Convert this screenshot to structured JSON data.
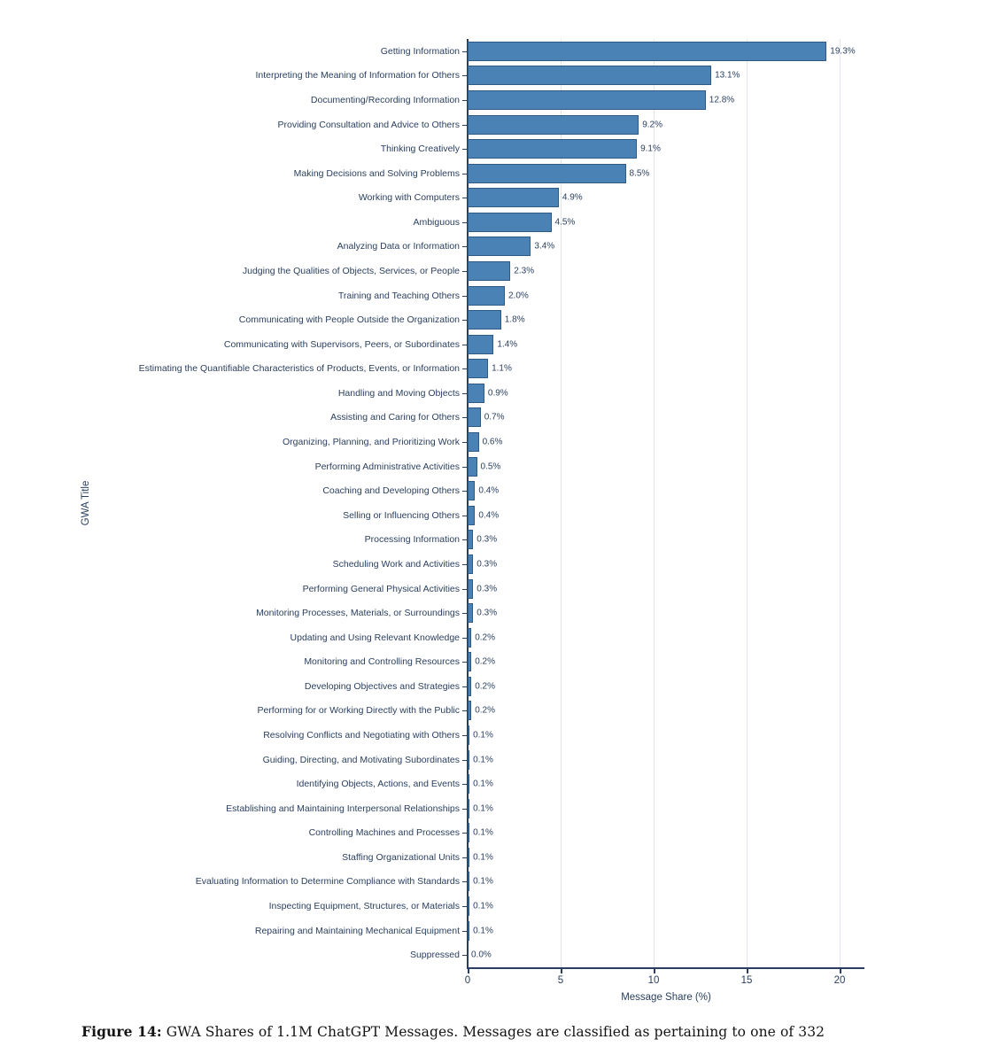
{
  "figure": {
    "caption_label": "Figure 14:",
    "caption_text": " GWA Shares of 1.1M ChatGPT Messages. Messages are classified as pertaining to one of 332"
  },
  "chart_data": {
    "type": "bar",
    "orientation": "horizontal",
    "title": "",
    "xlabel": "Message Share (%)",
    "ylabel": "GWA Title",
    "xlim": [
      0,
      21.3
    ],
    "xticks": [
      0,
      5,
      10,
      15,
      20
    ],
    "grid": true,
    "legend": "none",
    "bar_color": "#4a82b6",
    "bar_border_color": "#2f5a85",
    "text_color": "#2a3f5f",
    "gridline_color": "#e3e6ec",
    "categories": [
      "Getting Information",
      "Interpreting the Meaning of Information for Others",
      "Documenting/Recording Information",
      "Providing Consultation and Advice to Others",
      "Thinking Creatively",
      "Making Decisions and Solving Problems",
      "Working with Computers",
      "Ambiguous",
      "Analyzing Data or Information",
      "Judging the Qualities of Objects, Services, or People",
      "Training and Teaching Others",
      "Communicating with People Outside the Organization",
      "Communicating with Supervisors, Peers, or Subordinates",
      "Estimating the Quantifiable Characteristics of Products, Events, or Information",
      "Handling and Moving Objects",
      "Assisting and Caring for Others",
      "Organizing, Planning, and Prioritizing Work",
      "Performing Administrative Activities",
      "Coaching and Developing Others",
      "Selling or Influencing Others",
      "Processing Information",
      "Scheduling Work and Activities",
      "Performing General Physical Activities",
      "Monitoring Processes, Materials, or Surroundings",
      "Updating and Using Relevant Knowledge",
      "Monitoring and Controlling Resources",
      "Developing Objectives and Strategies",
      "Performing for or Working Directly with the Public",
      "Resolving Conflicts and Negotiating with Others",
      "Guiding, Directing, and Motivating Subordinates",
      "Identifying Objects, Actions, and Events",
      "Establishing and Maintaining Interpersonal Relationships",
      "Controlling Machines and Processes",
      "Staffing Organizational Units",
      "Evaluating Information to Determine Compliance with Standards",
      "Inspecting Equipment, Structures, or Materials",
      "Repairing and Maintaining Mechanical Equipment",
      "Suppressed"
    ],
    "values": [
      19.3,
      13.1,
      12.8,
      9.2,
      9.1,
      8.5,
      4.9,
      4.5,
      3.4,
      2.3,
      2.0,
      1.8,
      1.4,
      1.1,
      0.9,
      0.7,
      0.6,
      0.5,
      0.4,
      0.4,
      0.3,
      0.3,
      0.3,
      0.3,
      0.2,
      0.2,
      0.2,
      0.2,
      0.1,
      0.1,
      0.1,
      0.1,
      0.1,
      0.1,
      0.1,
      0.1,
      0.1,
      0.0
    ],
    "labels": [
      "19.3%",
      "13.1%",
      "12.8%",
      "9.2%",
      "9.1%",
      "8.5%",
      "4.9%",
      "4.5%",
      "3.4%",
      "2.3%",
      "2.0%",
      "1.8%",
      "1.4%",
      "1.1%",
      "0.9%",
      "0.7%",
      "0.6%",
      "0.5%",
      "0.4%",
      "0.4%",
      "0.3%",
      "0.3%",
      "0.3%",
      "0.3%",
      "0.2%",
      "0.2%",
      "0.2%",
      "0.2%",
      "0.1%",
      "0.1%",
      "0.1%",
      "0.1%",
      "0.1%",
      "0.1%",
      "0.1%",
      "0.1%",
      "0.1%",
      "0.0%"
    ]
  }
}
